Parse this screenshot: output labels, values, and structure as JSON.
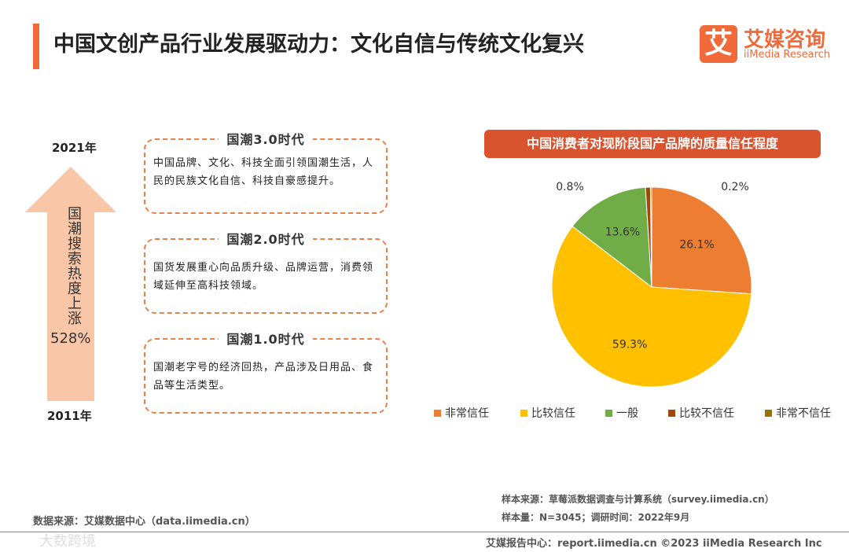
{
  "header": {
    "title": "中国文创产品行业发展驱动力：文化自信与传统文化复兴",
    "logo_mark": "艾",
    "logo_name": "艾媒咨询",
    "logo_sub": "iiMedia Research"
  },
  "timeline": {
    "top_year": "2021年",
    "bottom_year": "2011年",
    "arrow_text": "国潮搜索热度上涨",
    "arrow_value": "528%",
    "eras": [
      {
        "title": "国潮3.0时代",
        "text": "中国品牌、文化、科技全面引领国潮生活，人民的民族文化自信、科技自豪感提升。"
      },
      {
        "title": "国潮2.0时代",
        "text": "国货发展重心向品质升级、品牌运营，消费领域延伸至高科技领域。"
      },
      {
        "title": "国潮1.0时代",
        "text": "国潮老字号的经济回热，产品涉及日用品、食品等生活类型。"
      }
    ]
  },
  "chart_data": {
    "type": "pie",
    "title": "中国消费者对现阶段国产品牌的质量信任程度",
    "categories": [
      "非常信任",
      "比较信任",
      "一般",
      "比较不信任",
      "非常不信任"
    ],
    "values": [
      26.1,
      59.3,
      13.6,
      0.8,
      0.2
    ],
    "value_labels": [
      "26.1%",
      "59.3%",
      "13.6%",
      "0.8%",
      "0.2%"
    ],
    "colors": [
      "#ed7d31",
      "#ffc000",
      "#70ad47",
      "#9e480e",
      "#997300"
    ],
    "legend": "bottom"
  },
  "footer": {
    "data_source": "数据来源：艾媒数据中心（data.iimedia.cn）",
    "sample_source": "样本来源：草莓派数据调查与计算系统（survey.iimedia.cn）",
    "sample_size": "样本量：N=3045；调研时间：2022年9月",
    "copyright": "艾媒报告中心：report.iimedia.cn  ©2023  iiMedia Research  Inc",
    "watermark": "大数跨境"
  }
}
